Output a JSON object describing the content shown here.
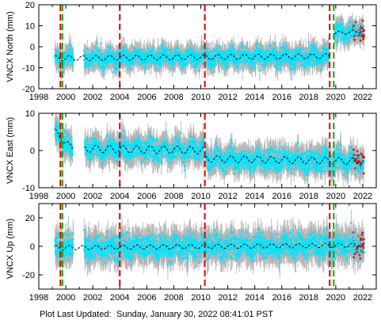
{
  "footer": {
    "label": "Plot Last Updated:",
    "timestamp": "Sunday, January 30, 2022 08:41:01 PST"
  },
  "colors": {
    "error_bars": "#b4b4b4",
    "observations": "#00e5ff",
    "recent_observations": "#ff0000",
    "model_fit": "#000000",
    "event_red": "#e00000",
    "event_green": "#00b000"
  },
  "chart_data": [
    {
      "type": "scatter",
      "component": "north",
      "ylabel": "VNCX North (mm)",
      "xlim": [
        1998,
        2023
      ],
      "ylim": [
        -20,
        20
      ],
      "x_ticks": [
        1998,
        2000,
        2002,
        2004,
        2006,
        2008,
        2010,
        2012,
        2014,
        2016,
        2018,
        2020,
        2022
      ],
      "y_ticks": [
        -20,
        -10,
        0,
        10,
        20
      ],
      "error_bar_mm": 4.5,
      "data_gap": [
        2000.55,
        2001.35
      ],
      "red_event_lines": [
        1999.6,
        2004.0,
        2010.3,
        2019.55
      ],
      "green_event_lines": [
        1999.75,
        2019.85
      ],
      "model_segments": [
        {
          "x_range": [
            1999.2,
            2019.5
          ],
          "offset": -5.5,
          "trend_mm_per_yr": 0.05,
          "annual_amplitude": 1.2
        },
        {
          "x_range": [
            2019.9,
            2022.1
          ],
          "offset": 6.5,
          "trend_mm_per_yr": 0.4,
          "annual_amplitude": 0.8
        }
      ],
      "recent_x_range": [
        2021.3,
        2022.1
      ],
      "grid": false
    },
    {
      "type": "scatter",
      "component": "east",
      "ylabel": "VNCX East (mm)",
      "xlim": [
        1998,
        2023
      ],
      "ylim": [
        -10,
        10
      ],
      "x_ticks": [
        1998,
        2000,
        2002,
        2004,
        2006,
        2008,
        2010,
        2012,
        2014,
        2016,
        2018,
        2020,
        2022
      ],
      "y_ticks": [
        -10,
        0,
        10
      ],
      "error_bar_mm": 3,
      "data_gap": [
        2000.55,
        2001.35
      ],
      "red_event_lines": [
        1999.6,
        2004.0,
        2010.3,
        2019.55
      ],
      "green_event_lines": [
        1999.75,
        2019.85
      ],
      "model_segments": [
        {
          "x_range": [
            1999.2,
            2000.5
          ],
          "offset": 5.0,
          "trend_mm_per_yr": -3.5,
          "annual_amplitude": 0.8
        },
        {
          "x_range": [
            2001.4,
            2010.25
          ],
          "offset": 0.5,
          "trend_mm_per_yr": -0.05,
          "annual_amplitude": 1.0
        },
        {
          "x_range": [
            2010.35,
            2022.1
          ],
          "offset": -2.2,
          "trend_mm_per_yr": -0.06,
          "annual_amplitude": 0.9
        }
      ],
      "recent_x_range": [
        2021.3,
        2022.1
      ],
      "grid": false
    },
    {
      "type": "scatter",
      "component": "up",
      "ylabel": "VNCX Up (mm)",
      "xlim": [
        1998,
        2023
      ],
      "ylim": [
        -30,
        30
      ],
      "x_ticks": [
        1998,
        2000,
        2002,
        2004,
        2006,
        2008,
        2010,
        2012,
        2014,
        2016,
        2018,
        2020,
        2022
      ],
      "y_ticks": [
        -20,
        0,
        20
      ],
      "error_bar_mm": 9,
      "data_gap": [
        2000.55,
        2001.35
      ],
      "red_event_lines": [
        1999.6,
        2004.0,
        2010.3,
        2019.55
      ],
      "green_event_lines": [
        1999.75,
        2019.85
      ],
      "model_segments": [
        {
          "x_range": [
            1999.2,
            2022.1
          ],
          "offset": -1.0,
          "trend_mm_per_yr": 0.08,
          "annual_amplitude": 1.5
        }
      ],
      "recent_x_range": [
        2021.3,
        2022.1
      ],
      "grid": false
    }
  ]
}
